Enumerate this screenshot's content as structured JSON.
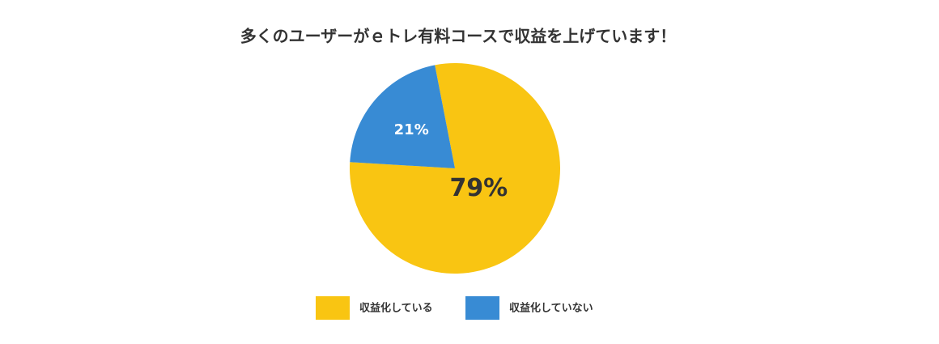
{
  "chart_data": {
    "type": "pie",
    "title": "多くのユーザーがｅトレ有料コースで収益を上げています！",
    "categories": [
      "収益化している",
      "収益化していない"
    ],
    "values": [
      79,
      21
    ],
    "value_labels": [
      "79%",
      "21%"
    ],
    "colors": [
      "#F9C512",
      "#388BD4"
    ],
    "legend": "bottom"
  }
}
